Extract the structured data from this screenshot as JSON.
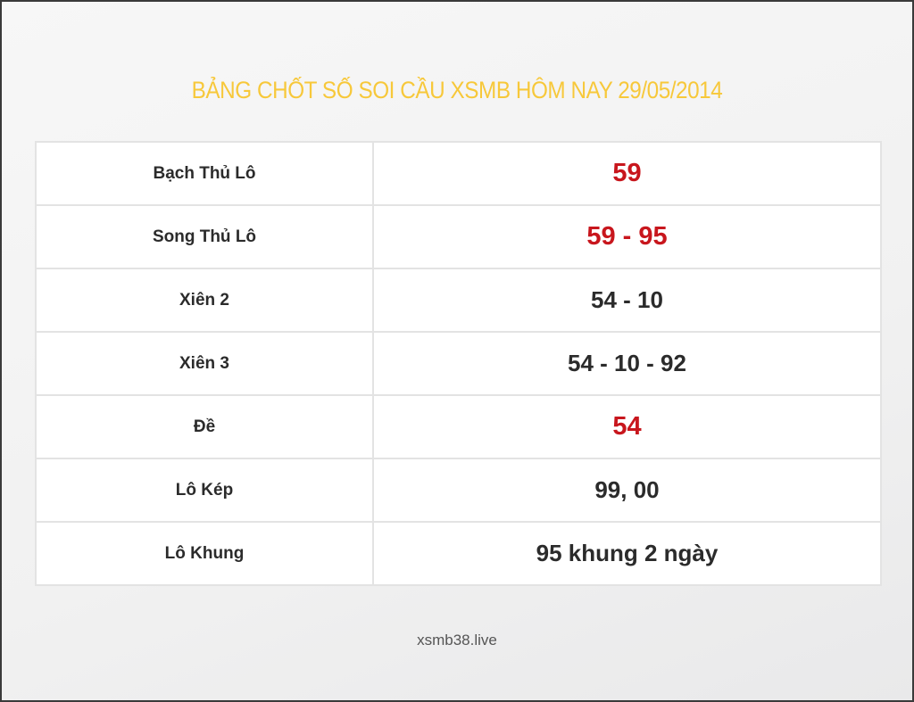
{
  "title": "BẢNG CHỐT SỐ SOI CẦU XSMB HÔM NAY 29/05/2014",
  "colors": {
    "title": "#f7c83a",
    "highlight": "#c8161d",
    "text": "#2b2b2b"
  },
  "rows": [
    {
      "label": "Bạch Thủ Lô",
      "value": "59",
      "highlight": true
    },
    {
      "label": "Song Thủ Lô",
      "value": "59 - 95",
      "highlight": true
    },
    {
      "label": "Xiên 2",
      "value": "54 - 10",
      "highlight": false
    },
    {
      "label": "Xiên 3",
      "value": "54 - 10 - 92",
      "highlight": false
    },
    {
      "label": "Đề",
      "value": "54",
      "highlight": true
    },
    {
      "label": "Lô Kép",
      "value": "99, 00",
      "highlight": false
    },
    {
      "label": "Lô Khung",
      "value": "95 khung 2 ngày",
      "highlight": false
    }
  ],
  "footer": "xsmb38.live"
}
